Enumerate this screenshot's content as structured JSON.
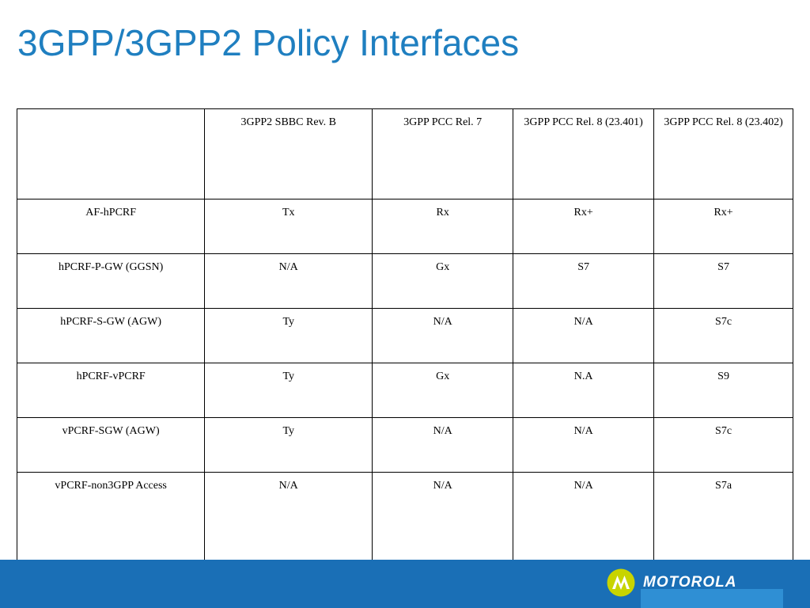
{
  "slide": {
    "title": "3GPP/3GPP2 Policy Interfaces"
  },
  "table": {
    "headers": [
      "",
      "3GPP2 SBBC Rev. B",
      "3GPP PCC Rel. 7",
      "3GPP PCC Rel. 8 (23.401)",
      "3GPP PCC Rel. 8 (23.402)"
    ],
    "rows": [
      [
        "AF-hPCRF",
        "Tx",
        "Rx",
        "Rx+",
        "Rx+"
      ],
      [
        "hPCRF-P-GW (GGSN)",
        "N/A",
        "Gx",
        "S7",
        "S7"
      ],
      [
        "hPCRF-S-GW (AGW)",
        "Ty",
        "N/A",
        "N/A",
        "S7c"
      ],
      [
        "hPCRF-vPCRF",
        "Ty",
        "Gx",
        "N.A",
        "S9"
      ],
      [
        "vPCRF-SGW (AGW)",
        "Ty",
        "N/A",
        "N/A",
        "S7c"
      ],
      [
        "vPCRF-non3GPP Access",
        "N/A",
        "N/A",
        "N/A",
        "S7a"
      ]
    ]
  },
  "footer": {
    "brand": "MOTOROLA",
    "logo_icon": "motorola-batwing-logo-icon",
    "band_color": "#1a6fb6",
    "logo_color": "#c8d400"
  }
}
